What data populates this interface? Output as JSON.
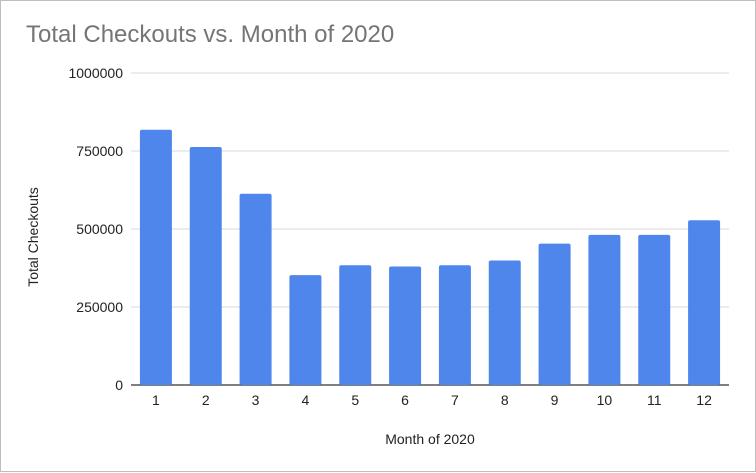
{
  "chart_data": {
    "type": "bar",
    "title": "Total Checkouts vs. Month of 2020",
    "xlabel": "Month of 2020",
    "ylabel": "Total Checkouts",
    "categories": [
      "1",
      "2",
      "3",
      "4",
      "5",
      "6",
      "7",
      "8",
      "9",
      "10",
      "11",
      "12"
    ],
    "values": [
      818000,
      763000,
      613000,
      352000,
      384000,
      380000,
      384000,
      399000,
      453000,
      481000,
      481000,
      528000
    ],
    "ylim": [
      0,
      1000000
    ],
    "yticks": [
      "0",
      "250000",
      "500000",
      "750000",
      "1000000"
    ],
    "ytick_values": [
      0,
      250000,
      500000,
      750000,
      1000000
    ],
    "grid": true,
    "bar_color": "#4f86ec",
    "grid_color": "#d9d9d9"
  }
}
